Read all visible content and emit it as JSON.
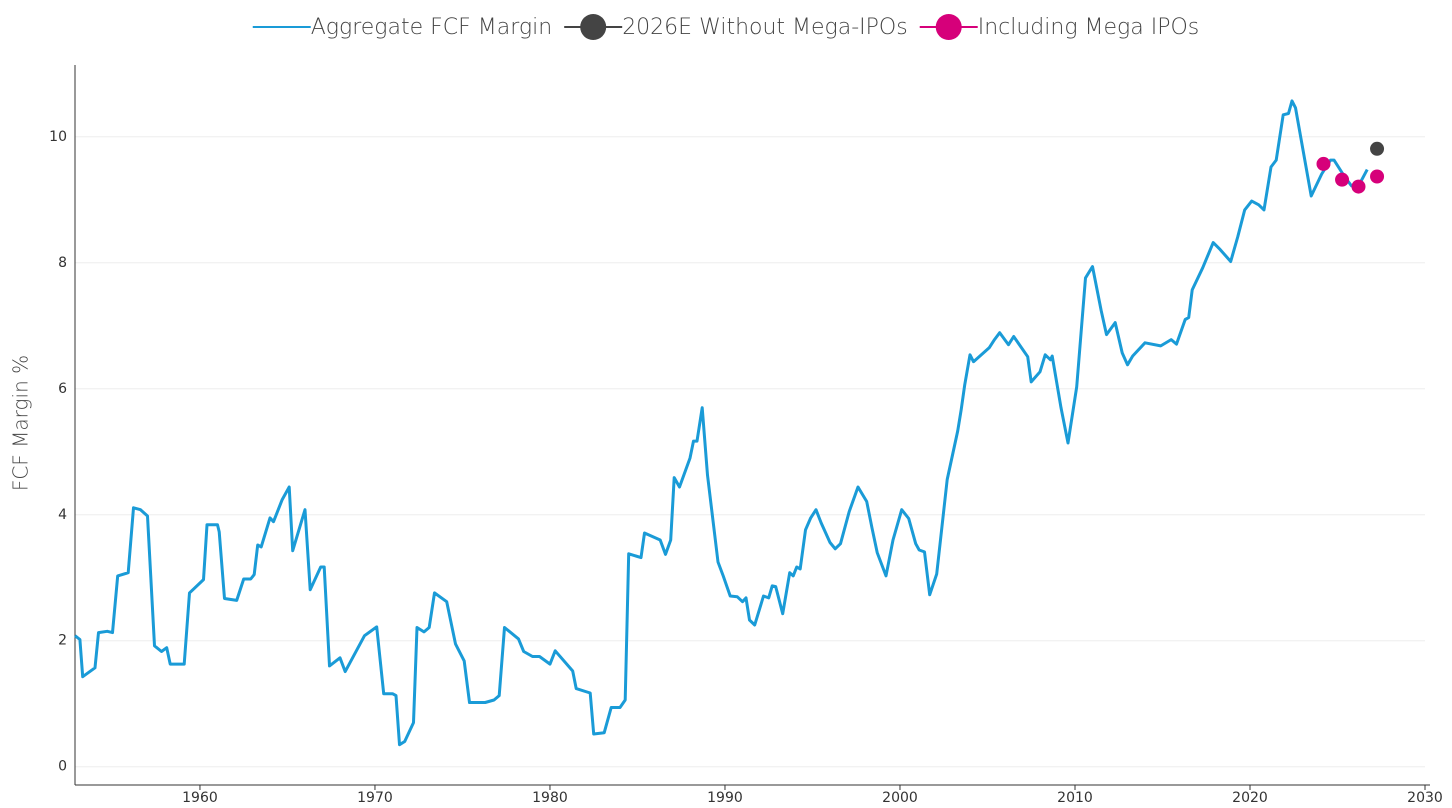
{
  "chart_data": {
    "type": "line",
    "ylabel": "FCF Margin %",
    "xlim": [
      1952.86,
      2030
    ],
    "ylim": [
      -0.29,
      11.14
    ],
    "xticks": [
      1960,
      1970,
      1980,
      1990,
      2000,
      2010,
      2020,
      2030
    ],
    "yticks": [
      0,
      2,
      4,
      6,
      8,
      10
    ],
    "grid": true,
    "legend": "top",
    "series": [
      {
        "name": "Aggregate FCF Margin",
        "type": "line",
        "color": "#1a9bd7",
        "x": [
          1952.86,
          1953.14,
          1953.3,
          1954.0,
          1954.2,
          1954.7,
          1955.0,
          1955.3,
          1955.9,
          1956.2,
          1956.6,
          1957.0,
          1957.4,
          1957.8,
          1958.1,
          1958.3,
          1959.1,
          1959.4,
          1960.2,
          1960.4,
          1961.0,
          1961.1,
          1961.4,
          1962.1,
          1962.5,
          1962.9,
          1963.1,
          1963.3,
          1963.5,
          1964.0,
          1964.2,
          1964.7,
          1965.1,
          1965.3,
          1966.0,
          1966.3,
          1966.9,
          1967.1,
          1967.4,
          1968.0,
          1968.3,
          1969.4,
          1970.1,
          1970.5,
          1971.0,
          1971.2,
          1971.4,
          1971.7,
          1972.2,
          1972.4,
          1972.8,
          1973.1,
          1973.4,
          1974.1,
          1974.6,
          1975.1,
          1975.4,
          1976.3,
          1976.8,
          1977.1,
          1977.4,
          1978.2,
          1978.5,
          1979.0,
          1979.4,
          1980.0,
          1980.3,
          1981.3,
          1981.5,
          1982.3,
          1982.5,
          1983.1,
          1983.5,
          1984.0,
          1984.3,
          1984.5,
          1985.2,
          1985.4,
          1986.3,
          1986.6,
          1986.9,
          1987.1,
          1987.4,
          1988.0,
          1988.2,
          1988.4,
          1988.7,
          1989.0,
          1989.6,
          1989.9,
          1990.3,
          1990.7,
          1991.0,
          1991.2,
          1991.4,
          1991.7,
          1992.2,
          1992.5,
          1992.7,
          1992.9,
          1993.3,
          1993.7,
          1993.9,
          1994.1,
          1994.3,
          1994.6,
          1994.9,
          1995.2,
          1995.5,
          1996.0,
          1996.3,
          1996.6,
          1997.1,
          1997.6,
          1998.1,
          1998.4,
          1998.7,
          1999.2,
          1999.6,
          2000.1,
          2000.5,
          2000.9,
          2001.1,
          2001.4,
          2001.7,
          2002.1,
          2002.7,
          2003.3,
          2003.5,
          2003.7,
          2004.0,
          2004.2,
          2005.1,
          2005.4,
          2005.7,
          2006.2,
          2006.5,
          2007.3,
          2007.5,
          2008.0,
          2008.3,
          2008.6,
          2008.7,
          2009.2,
          2009.6,
          2010.1,
          2010.6,
          2011.0,
          2011.5,
          2011.8,
          2012.3,
          2012.7,
          2013.0,
          2013.3,
          2014.0,
          2014.9,
          2015.5,
          2015.8,
          2016.3,
          2016.5,
          2016.7,
          2017.3,
          2017.9,
          2018.3,
          2018.9,
          2019.3,
          2019.7,
          2020.1,
          2020.5,
          2020.8,
          2021.2,
          2021.5,
          2021.9,
          2022.2,
          2022.4,
          2022.6,
          2023.5,
          2024.1,
          2024.6,
          2024.8,
          2025.4,
          2025.8,
          2026.2,
          2026.7
        ],
        "values": [
          2.08,
          2.02,
          1.43,
          1.57,
          2.13,
          2.15,
          2.13,
          3.03,
          3.08,
          4.11,
          4.08,
          3.98,
          1.92,
          1.83,
          1.89,
          1.63,
          1.63,
          2.76,
          2.97,
          3.84,
          3.84,
          3.73,
          2.67,
          2.64,
          2.98,
          2.98,
          3.05,
          3.52,
          3.49,
          3.95,
          3.89,
          4.24,
          4.44,
          3.43,
          4.08,
          2.81,
          3.17,
          3.17,
          1.6,
          1.73,
          1.51,
          2.08,
          2.22,
          1.16,
          1.16,
          1.13,
          0.35,
          0.4,
          0.7,
          2.21,
          2.14,
          2.21,
          2.76,
          2.62,
          1.95,
          1.68,
          1.02,
          1.02,
          1.06,
          1.13,
          2.21,
          2.03,
          1.83,
          1.75,
          1.75,
          1.63,
          1.84,
          1.52,
          1.24,
          1.17,
          0.52,
          0.54,
          0.94,
          0.94,
          1.06,
          3.38,
          3.32,
          3.71,
          3.6,
          3.37,
          3.6,
          4.59,
          4.44,
          4.9,
          5.17,
          5.17,
          5.7,
          4.63,
          3.25,
          3.03,
          2.71,
          2.7,
          2.62,
          2.68,
          2.33,
          2.25,
          2.71,
          2.68,
          2.87,
          2.86,
          2.43,
          3.08,
          3.03,
          3.17,
          3.14,
          3.76,
          3.95,
          4.08,
          3.87,
          3.56,
          3.46,
          3.54,
          4.05,
          4.44,
          4.21,
          3.79,
          3.4,
          3.03,
          3.6,
          4.08,
          3.94,
          3.54,
          3.44,
          3.41,
          2.73,
          3.06,
          4.56,
          5.33,
          5.67,
          6.06,
          6.54,
          6.43,
          6.65,
          6.78,
          6.89,
          6.7,
          6.83,
          6.51,
          6.11,
          6.27,
          6.54,
          6.46,
          6.52,
          5.7,
          5.14,
          6.03,
          7.76,
          7.94,
          7.24,
          6.86,
          7.05,
          6.57,
          6.38,
          6.52,
          6.73,
          6.68,
          6.78,
          6.71,
          7.1,
          7.13,
          7.57,
          7.92,
          8.32,
          8.21,
          8.02,
          8.41,
          8.84,
          8.98,
          8.92,
          8.84,
          9.52,
          9.63,
          10.35,
          10.37,
          10.57,
          10.46,
          9.06,
          9.41,
          9.63,
          9.63,
          9.37,
          9.22,
          9.22,
          9.48
        ]
      },
      {
        "name": "2026E Without Mega-IPOs",
        "type": "scatter",
        "color": "#444444",
        "x": [
          2027.26
        ],
        "values": [
          9.81
        ]
      },
      {
        "name": "Including Mega IPOs",
        "type": "scatter",
        "color": "#d6007a",
        "x": [
          2024.2,
          2025.26,
          2026.2,
          2027.26
        ],
        "values": [
          9.57,
          9.32,
          9.21,
          9.37
        ]
      }
    ]
  }
}
